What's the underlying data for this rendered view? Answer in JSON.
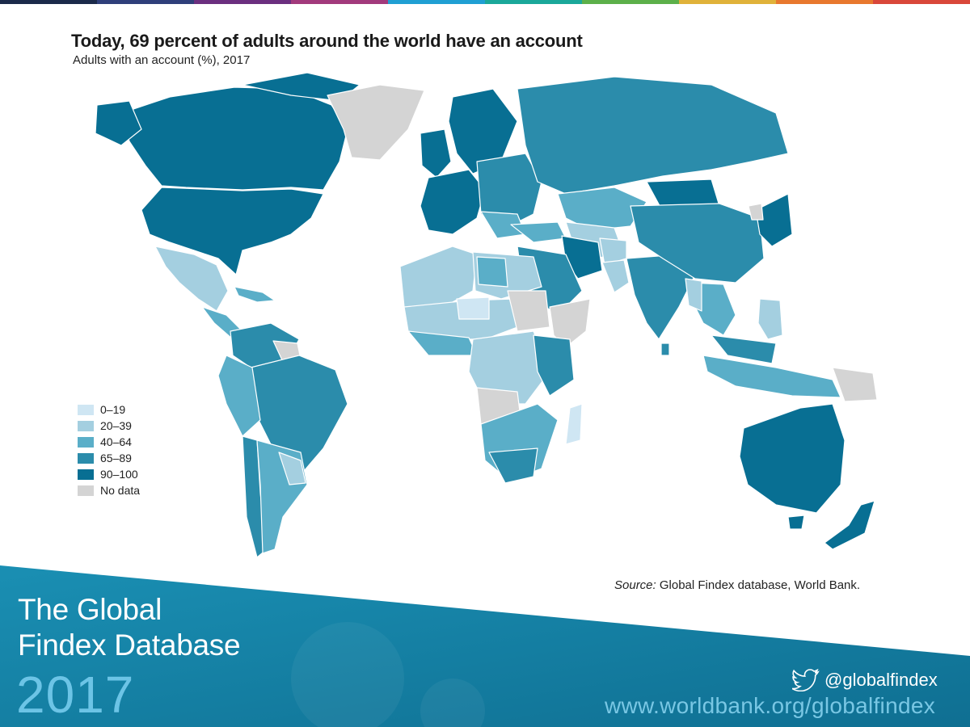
{
  "header": {
    "title": "Today, 69 percent of adults around the world have an account",
    "subtitle": "Adults with an account (%), 2017"
  },
  "colors": {
    "c0_19": "#cfe6f3",
    "c20_39": "#a4cfe0",
    "c40_64": "#5aaec8",
    "c65_89": "#2b8cab",
    "c90_100": "#086f93",
    "nodata": "#d4d4d4",
    "footer_bg": "#1a88aa"
  },
  "legend": {
    "items": [
      {
        "label": "0–19",
        "color": "#cfe6f3"
      },
      {
        "label": "20–39",
        "color": "#a4cfe0"
      },
      {
        "label": "40–64",
        "color": "#5aaec8"
      },
      {
        "label": "65–89",
        "color": "#2b8cab"
      },
      {
        "label": "90–100",
        "color": "#086f93"
      },
      {
        "label": "No data",
        "color": "#d4d4d4"
      }
    ]
  },
  "source": {
    "label": "Source:",
    "text": " Global Findex database, World Bank."
  },
  "footer": {
    "brand_line1": "The Global",
    "brand_line2": "Findex Database",
    "year": "2017",
    "handle": "@globalfindex",
    "url": "www.worldbank.org/globalfindex"
  }
}
